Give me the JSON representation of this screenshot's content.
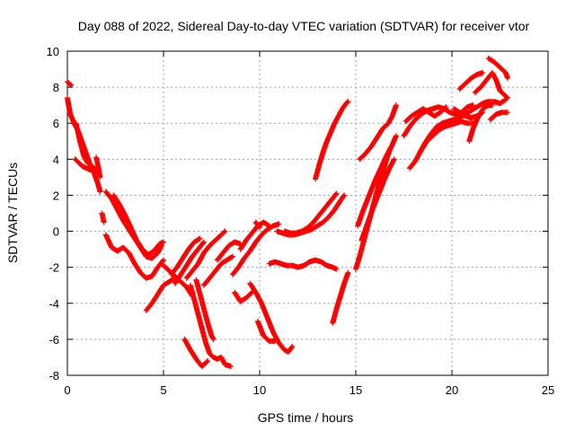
{
  "chart_data": {
    "type": "scatter",
    "title": "Day 088 of 2022, Sidereal Day-to-day VTEC variation (SDTVAR) for receiver vtor",
    "xlabel": "GPS time / hours",
    "ylabel": "SDTVAR / TECUs",
    "xlim": [
      0,
      25
    ],
    "ylim": [
      -8,
      10
    ],
    "xticks": [
      0,
      5,
      10,
      15,
      20,
      25
    ],
    "yticks": [
      -8,
      -6,
      -4,
      -2,
      0,
      2,
      4,
      6,
      8,
      10
    ],
    "grid": true,
    "marker": "+",
    "color": "#ff0000",
    "tracks": [
      [
        [
          0.0,
          8.3
        ],
        [
          0.2,
          8.1
        ]
      ],
      [
        [
          0.0,
          7.4
        ],
        [
          0.15,
          6.5
        ],
        [
          0.35,
          6.0
        ],
        [
          0.55,
          5.6
        ],
        [
          0.75,
          5.0
        ],
        [
          0.95,
          4.4
        ],
        [
          1.15,
          3.8
        ],
        [
          1.4,
          3.2
        ],
        [
          1.6,
          2.6
        ],
        [
          1.7,
          2.2
        ]
      ],
      [
        [
          0.45,
          6.0
        ],
        [
          0.65,
          5.0
        ],
        [
          0.85,
          4.2
        ],
        [
          1.05,
          3.8
        ],
        [
          1.3,
          3.6
        ],
        [
          1.5,
          3.4
        ]
      ],
      [
        [
          0.4,
          4.0
        ],
        [
          0.6,
          3.8
        ],
        [
          0.8,
          3.6
        ],
        [
          1.0,
          3.5
        ],
        [
          1.2,
          3.4
        ]
      ],
      [
        [
          1.5,
          4.1
        ],
        [
          1.6,
          3.6
        ],
        [
          1.7,
          3.0
        ]
      ],
      [
        [
          1.8,
          1.0
        ],
        [
          1.9,
          0.5
        ]
      ],
      [
        [
          2.0,
          2.2
        ],
        [
          2.3,
          1.8
        ],
        [
          2.6,
          1.2
        ],
        [
          2.9,
          0.6
        ],
        [
          3.2,
          0.1
        ],
        [
          3.5,
          -0.4
        ],
        [
          3.8,
          -0.9
        ],
        [
          4.1,
          -1.4
        ],
        [
          4.4,
          -1.5
        ],
        [
          4.7,
          -1.2
        ],
        [
          4.9,
          -0.8
        ]
      ],
      [
        [
          2.4,
          2.0
        ],
        [
          2.7,
          1.5
        ],
        [
          3.0,
          0.9
        ],
        [
          3.3,
          0.2
        ],
        [
          3.6,
          -0.5
        ],
        [
          3.9,
          -1.0
        ],
        [
          4.2,
          -1.3
        ],
        [
          4.5,
          -1.1
        ],
        [
          4.8,
          -0.7
        ],
        [
          5.0,
          -0.6
        ]
      ],
      [
        [
          2.0,
          -0.2
        ],
        [
          2.3,
          -0.9
        ],
        [
          2.6,
          -1.1
        ],
        [
          2.9,
          -0.9
        ],
        [
          3.2,
          -1.2
        ],
        [
          3.5,
          -1.8
        ],
        [
          3.8,
          -2.3
        ],
        [
          4.1,
          -2.6
        ],
        [
          4.4,
          -2.5
        ],
        [
          4.7,
          -2.0
        ],
        [
          5.0,
          -1.6
        ]
      ],
      [
        [
          4.1,
          -4.4
        ],
        [
          4.4,
          -4.0
        ],
        [
          4.7,
          -3.5
        ],
        [
          5.0,
          -3.0
        ],
        [
          5.3,
          -2.8
        ],
        [
          5.6,
          -2.6
        ]
      ],
      [
        [
          5.0,
          -1.9
        ],
        [
          5.3,
          -2.2
        ],
        [
          5.6,
          -2.5
        ],
        [
          5.9,
          -2.8
        ],
        [
          6.2,
          -3.1
        ],
        [
          6.5,
          -3.6
        ]
      ],
      [
        [
          5.4,
          -2.4
        ],
        [
          5.7,
          -2.0
        ],
        [
          6.0,
          -1.5
        ],
        [
          6.3,
          -1.0
        ],
        [
          6.6,
          -0.6
        ],
        [
          6.9,
          -0.4
        ]
      ],
      [
        [
          5.6,
          -2.9
        ],
        [
          5.9,
          -2.4
        ],
        [
          6.2,
          -1.9
        ],
        [
          6.5,
          -1.4
        ],
        [
          6.8,
          -1.0
        ],
        [
          7.1,
          -0.6
        ]
      ],
      [
        [
          6.2,
          -2.6
        ],
        [
          6.5,
          -2.2
        ],
        [
          6.8,
          -1.8
        ],
        [
          7.1,
          -1.2
        ],
        [
          7.4,
          -0.8
        ],
        [
          7.7,
          -0.5
        ],
        [
          8.0,
          -0.2
        ],
        [
          8.2,
          0.0
        ]
      ],
      [
        [
          6.4,
          -3.0
        ],
        [
          6.6,
          -3.8
        ],
        [
          6.8,
          -4.6
        ],
        [
          7.0,
          -5.4
        ],
        [
          7.2,
          -6.2
        ],
        [
          7.4,
          -6.8
        ],
        [
          7.6,
          -7.0
        ],
        [
          7.8,
          -7.1
        ],
        [
          8.0,
          -7.0
        ],
        [
          8.2,
          -7.4
        ],
        [
          8.5,
          -7.5
        ]
      ],
      [
        [
          6.1,
          -6.0
        ],
        [
          6.4,
          -6.6
        ],
        [
          6.7,
          -7.1
        ],
        [
          7.0,
          -7.5
        ],
        [
          7.3,
          -7.2
        ]
      ],
      [
        [
          6.7,
          -2.7
        ],
        [
          6.9,
          -3.5
        ],
        [
          7.1,
          -4.3
        ],
        [
          7.3,
          -5.1
        ],
        [
          7.5,
          -5.8
        ],
        [
          7.6,
          -6.0
        ]
      ],
      [
        [
          7.1,
          -3.0
        ],
        [
          7.4,
          -2.6
        ],
        [
          7.7,
          -2.2
        ],
        [
          8.0,
          -1.8
        ],
        [
          8.3,
          -1.6
        ],
        [
          8.6,
          -1.4
        ]
      ],
      [
        [
          7.8,
          -1.6
        ],
        [
          8.1,
          -1.2
        ],
        [
          8.4,
          -0.8
        ],
        [
          8.7,
          -0.6
        ],
        [
          9.0,
          -0.7
        ]
      ],
      [
        [
          8.6,
          -2.4
        ],
        [
          8.9,
          -2.0
        ],
        [
          9.2,
          -1.5
        ],
        [
          9.5,
          -1.1
        ],
        [
          9.8,
          -0.6
        ],
        [
          10.1,
          -0.2
        ],
        [
          10.4,
          0.1
        ],
        [
          10.7,
          0.3
        ],
        [
          11.0,
          0.4
        ]
      ],
      [
        [
          9.0,
          -1.0
        ],
        [
          9.3,
          -0.5
        ],
        [
          9.6,
          -0.1
        ],
        [
          9.9,
          0.3
        ],
        [
          10.2,
          0.5
        ],
        [
          10.5,
          0.3
        ]
      ],
      [
        [
          8.7,
          -3.4
        ],
        [
          9.0,
          -3.9
        ],
        [
          9.3,
          -3.7
        ],
        [
          9.6,
          -3.4
        ]
      ],
      [
        [
          9.5,
          -2.9
        ],
        [
          9.8,
          -3.4
        ],
        [
          10.1,
          -4.0
        ],
        [
          10.4,
          -4.8
        ],
        [
          10.7,
          -5.6
        ],
        [
          11.0,
          -6.2
        ],
        [
          11.3,
          -6.6
        ],
        [
          11.5,
          -6.7
        ],
        [
          11.7,
          -6.4
        ]
      ],
      [
        [
          9.9,
          -5.0
        ],
        [
          10.2,
          -5.8
        ],
        [
          10.5,
          -6.1
        ],
        [
          10.8,
          -6.1
        ]
      ],
      [
        [
          9.8,
          0.5
        ],
        [
          10.0,
          0.2
        ]
      ],
      [
        [
          10.5,
          -1.8
        ],
        [
          10.8,
          -1.7
        ],
        [
          11.1,
          -1.8
        ],
        [
          11.4,
          -1.9
        ],
        [
          11.7,
          -1.9
        ],
        [
          12.0,
          -2.0
        ],
        [
          12.3,
          -1.9
        ],
        [
          12.6,
          -1.7
        ],
        [
          12.9,
          -1.6
        ],
        [
          13.2,
          -1.7
        ],
        [
          13.5,
          -1.9
        ],
        [
          13.8,
          -2.0
        ],
        [
          14.0,
          -2.1
        ]
      ],
      [
        [
          10.9,
          0.0
        ],
        [
          11.2,
          -0.1
        ],
        [
          11.5,
          -0.2
        ],
        [
          11.8,
          -0.2
        ],
        [
          12.1,
          -0.1
        ],
        [
          12.4,
          0.0
        ],
        [
          12.7,
          0.1
        ],
        [
          13.0,
          0.3
        ],
        [
          13.3,
          0.5
        ],
        [
          13.6,
          0.8
        ],
        [
          13.9,
          1.2
        ],
        [
          14.2,
          1.7
        ],
        [
          14.4,
          2.0
        ]
      ],
      [
        [
          11.3,
          0.0
        ],
        [
          11.6,
          -0.1
        ],
        [
          11.9,
          -0.1
        ],
        [
          12.2,
          0.0
        ],
        [
          12.5,
          0.2
        ],
        [
          12.8,
          0.5
        ],
        [
          13.1,
          0.9
        ],
        [
          13.4,
          1.3
        ],
        [
          13.7,
          1.7
        ],
        [
          14.0,
          2.1
        ]
      ],
      [
        [
          12.9,
          2.9
        ],
        [
          13.1,
          3.7
        ],
        [
          13.3,
          4.4
        ],
        [
          13.5,
          5.0
        ],
        [
          13.7,
          5.5
        ],
        [
          13.9,
          6.0
        ],
        [
          14.1,
          6.4
        ],
        [
          14.3,
          6.8
        ],
        [
          14.5,
          7.1
        ],
        [
          14.6,
          7.2
        ]
      ],
      [
        [
          13.8,
          -5.1
        ],
        [
          14.0,
          -4.3
        ],
        [
          14.2,
          -3.6
        ],
        [
          14.4,
          -2.9
        ],
        [
          14.6,
          -2.3
        ]
      ],
      [
        [
          15.0,
          -2.1
        ],
        [
          15.2,
          -1.4
        ],
        [
          15.4,
          -0.6
        ],
        [
          15.6,
          0.2
        ],
        [
          15.8,
          1.0
        ],
        [
          16.0,
          1.8
        ],
        [
          16.2,
          2.6
        ],
        [
          16.4,
          3.3
        ],
        [
          16.6,
          4.0
        ],
        [
          16.8,
          4.6
        ]
      ],
      [
        [
          15.1,
          0.3
        ],
        [
          15.4,
          1.2
        ],
        [
          15.7,
          2.0
        ],
        [
          16.0,
          2.8
        ],
        [
          16.3,
          3.5
        ],
        [
          16.6,
          4.2
        ],
        [
          16.9,
          4.8
        ],
        [
          17.1,
          5.3
        ]
      ],
      [
        [
          15.3,
          -0.5
        ],
        [
          15.6,
          0.4
        ],
        [
          15.9,
          1.3
        ],
        [
          16.2,
          2.1
        ],
        [
          16.5,
          2.9
        ],
        [
          16.8,
          3.6
        ],
        [
          17.0,
          4.0
        ]
      ],
      [
        [
          15.2,
          4.0
        ],
        [
          15.5,
          4.3
        ],
        [
          15.8,
          4.7
        ],
        [
          16.1,
          5.2
        ],
        [
          16.4,
          5.7
        ],
        [
          16.7,
          6.0
        ],
        [
          16.9,
          6.4
        ],
        [
          17.1,
          7.0
        ]
      ],
      [
        [
          17.5,
          5.3
        ],
        [
          17.8,
          5.8
        ],
        [
          18.1,
          6.2
        ],
        [
          18.4,
          6.5
        ],
        [
          18.7,
          6.7
        ],
        [
          19.0,
          6.8
        ],
        [
          19.3,
          6.9
        ],
        [
          19.6,
          6.8
        ],
        [
          19.9,
          6.6
        ],
        [
          20.2,
          6.5
        ],
        [
          20.5,
          6.6
        ],
        [
          20.8,
          6.9
        ],
        [
          21.1,
          7.0
        ]
      ],
      [
        [
          17.6,
          6.1
        ],
        [
          17.9,
          6.4
        ],
        [
          18.2,
          6.6
        ],
        [
          18.5,
          6.8
        ],
        [
          18.8,
          6.6
        ],
        [
          19.1,
          6.4
        ],
        [
          19.4,
          6.6
        ],
        [
          19.7,
          6.9
        ]
      ],
      [
        [
          17.8,
          3.5
        ],
        [
          18.1,
          3.9
        ],
        [
          18.4,
          4.5
        ],
        [
          18.7,
          5.0
        ],
        [
          19.0,
          5.3
        ],
        [
          19.3,
          5.6
        ],
        [
          19.6,
          5.8
        ],
        [
          19.9,
          5.9
        ],
        [
          20.2,
          6.0
        ],
        [
          20.5,
          6.1
        ],
        [
          20.8,
          6.0
        ],
        [
          21.1,
          6.0
        ]
      ],
      [
        [
          18.3,
          4.3
        ],
        [
          18.6,
          4.9
        ],
        [
          18.9,
          5.4
        ],
        [
          19.2,
          5.8
        ],
        [
          19.5,
          6.0
        ],
        [
          19.8,
          6.1
        ],
        [
          20.1,
          6.2
        ],
        [
          20.4,
          6.3
        ],
        [
          20.7,
          6.5
        ],
        [
          21.0,
          6.7
        ],
        [
          21.3,
          6.9
        ],
        [
          21.6,
          7.1
        ],
        [
          21.9,
          7.2
        ],
        [
          22.2,
          7.2
        ],
        [
          22.5,
          7.1
        ],
        [
          22.8,
          7.3
        ]
      ],
      [
        [
          20.1,
          6.8
        ],
        [
          20.4,
          6.6
        ],
        [
          20.7,
          6.4
        ],
        [
          21.0,
          6.3
        ],
        [
          21.3,
          6.4
        ],
        [
          21.6,
          6.6
        ]
      ],
      [
        [
          20.9,
          5.0
        ],
        [
          21.1,
          5.7
        ],
        [
          21.3,
          6.2
        ],
        [
          21.5,
          6.6
        ],
        [
          21.7,
          6.9
        ],
        [
          21.9,
          7.0
        ],
        [
          22.1,
          7.0
        ]
      ],
      [
        [
          21.2,
          7.7
        ],
        [
          21.5,
          8.0
        ],
        [
          21.8,
          8.4
        ],
        [
          22.1,
          8.8
        ],
        [
          22.3,
          8.4
        ],
        [
          22.5,
          7.8
        ],
        [
          22.7,
          7.6
        ],
        [
          22.9,
          7.4
        ]
      ],
      [
        [
          22.0,
          6.2
        ],
        [
          22.3,
          6.5
        ],
        [
          22.6,
          6.6
        ],
        [
          22.9,
          6.6
        ]
      ],
      [
        [
          20.4,
          7.9
        ],
        [
          20.7,
          8.2
        ],
        [
          21.0,
          8.5
        ],
        [
          21.3,
          8.7
        ],
        [
          21.6,
          8.8
        ]
      ],
      [
        [
          21.9,
          9.6
        ],
        [
          22.2,
          9.4
        ],
        [
          22.5,
          9.1
        ],
        [
          22.8,
          8.8
        ],
        [
          22.9,
          8.5
        ]
      ]
    ]
  }
}
